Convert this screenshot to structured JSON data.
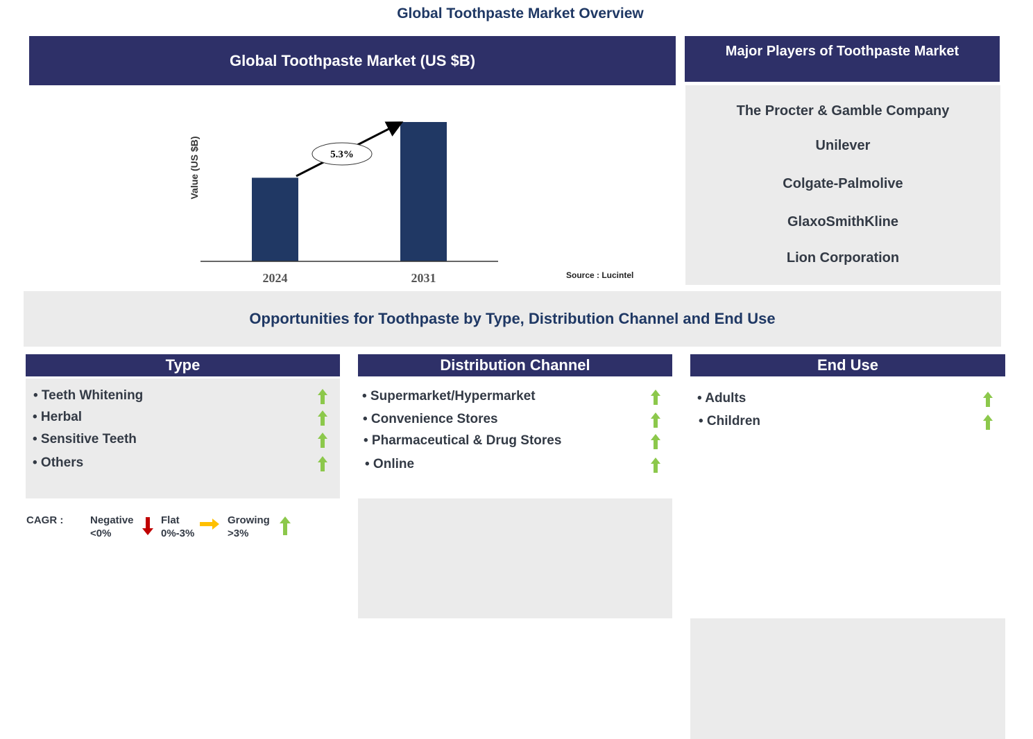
{
  "title": "Global Toothpaste Market Overview",
  "chart_data": {
    "type": "bar",
    "title": "Global Toothpaste Market (US $B)",
    "ylabel": "Value (US $B)",
    "categories": [
      "2024",
      "2031"
    ],
    "relative_values": [
      0.6,
      1.0
    ],
    "annotation": "5.3%",
    "color": "#203864",
    "grid": false
  },
  "source": "Source : Lucintel",
  "players": {
    "title": "Major Players of Toothpaste Market",
    "items": [
      "The Procter & Gamble Company",
      "Unilever",
      "Colgate-Palmolive",
      "GlaxoSmithKline",
      "Lion Corporation"
    ]
  },
  "opportunities": "Opportunities for Toothpaste by Type, Distribution Channel and End Use",
  "segments": [
    {
      "title": "Type",
      "items": [
        "• Teeth Whitening",
        "• Herbal",
        "• Sensitive Teeth",
        "• Others"
      ]
    },
    {
      "title": "Distribution Channel",
      "items": [
        "• Supermarket/Hypermarket",
        "• Convenience Stores",
        "• Pharmaceutical & Drug Stores",
        "• Online"
      ]
    },
    {
      "title": "End Use",
      "items": [
        "• Adults",
        "• Children"
      ]
    }
  ],
  "legend": {
    "label": "CAGR  :",
    "negative": "Negative",
    "negative_range": "<0%",
    "flat": "Flat",
    "flat_range": "0%-3%",
    "growing": "Growing",
    "growing_range": ">3%"
  },
  "colors": {
    "navy": "#2e3068",
    "up": "#8cc84b",
    "down": "#c00000",
    "flat": "#ffc000"
  }
}
